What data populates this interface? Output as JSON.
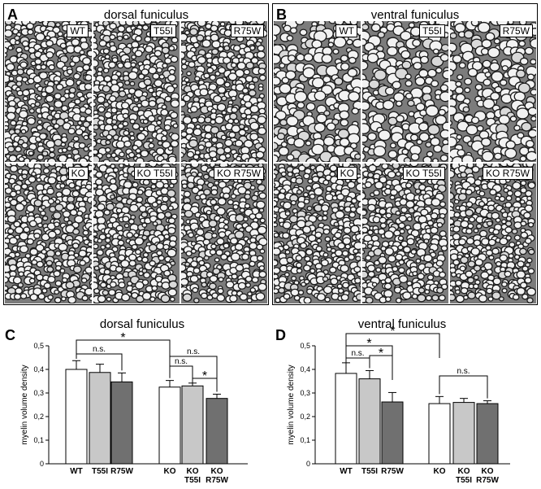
{
  "figure": {
    "panel_a": {
      "letter": "A",
      "title": "dorsal funiculus",
      "images": [
        "WT",
        "T55I",
        "R75W",
        "KO",
        "KO T55I",
        "KO R75W"
      ]
    },
    "panel_b": {
      "letter": "B",
      "title": "ventral funiculus",
      "images": [
        "WT",
        "T55I",
        "R75W",
        "KO",
        "KO T55I",
        "KO R75W"
      ]
    }
  },
  "chart_data": [
    {
      "letter": "C",
      "type": "bar",
      "title": "dorsal funiculus",
      "ylabel": "myelin volume density",
      "ylim": [
        0,
        0.5
      ],
      "yticks": [
        "0",
        "0,1",
        "0,2",
        "0,3",
        "0,4",
        "0,5"
      ],
      "categories": [
        [
          "WT"
        ],
        [
          "T55I"
        ],
        [
          "R75W"
        ],
        [
          "KO"
        ],
        [
          "KO",
          "T55I"
        ],
        [
          "KO",
          "R75W"
        ]
      ],
      "values": [
        0.4,
        0.387,
        0.347,
        0.325,
        0.33,
        0.277
      ],
      "errors": [
        0.037,
        0.035,
        0.038,
        0.028,
        0.012,
        0.018
      ],
      "fills": [
        "#ffffff",
        "#c8c8c8",
        "#707070",
        "#ffffff",
        "#c8c8c8",
        "#707070"
      ],
      "annotations": [
        {
          "label": "*",
          "from": 0,
          "to": 3
        },
        {
          "label": "n.s.",
          "from": 0,
          "to": 2
        },
        {
          "label": "n.s.",
          "from": 3,
          "to": 5
        },
        {
          "label": "n.s.",
          "from": 3,
          "to": 4
        },
        {
          "label": "*",
          "from": 4,
          "to": 5
        }
      ]
    },
    {
      "letter": "D",
      "type": "bar",
      "title": "ventral funiculus",
      "ylabel": "myelin volume density",
      "ylim": [
        0,
        0.5
      ],
      "yticks": [
        "0",
        "0,1",
        "0,2",
        "0,3",
        "0,4",
        "0,5"
      ],
      "categories": [
        [
          "WT"
        ],
        [
          "T55I"
        ],
        [
          "R75W"
        ],
        [
          "KO"
        ],
        [
          "KO",
          "T55I"
        ],
        [
          "KO",
          "R75W"
        ]
      ],
      "values": [
        0.383,
        0.36,
        0.262,
        0.255,
        0.26,
        0.255
      ],
      "errors": [
        0.045,
        0.035,
        0.04,
        0.03,
        0.017,
        0.012
      ],
      "fills": [
        "#ffffff",
        "#c8c8c8",
        "#707070",
        "#ffffff",
        "#c8c8c8",
        "#707070"
      ],
      "annotations": [
        {
          "label": "*",
          "from": 0,
          "to": 3
        },
        {
          "label": "*",
          "from": 0,
          "to": 2
        },
        {
          "label": "n.s.",
          "from": 0,
          "to": 1
        },
        {
          "label": "*",
          "from": 1,
          "to": 2
        },
        {
          "label": "n.s.",
          "from": 3,
          "to": 5
        }
      ]
    }
  ]
}
